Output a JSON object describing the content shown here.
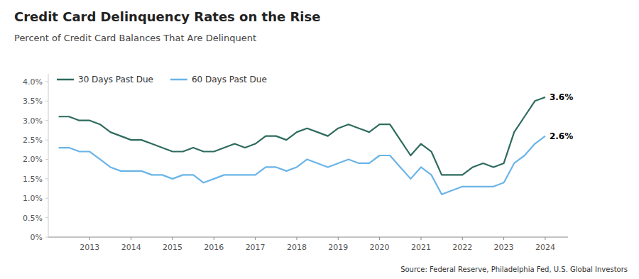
{
  "chart_data": {
    "type": "line",
    "title": "Credit Card Delinquency Rates on the Rise",
    "subtitle": "Percent of Credit Card Balances That Are Delinquent",
    "source": "Source: Federal Reserve, Philadelphia Fed, U.S. Global Investors",
    "x": [
      2012.25,
      2012.5,
      2012.75,
      2013.0,
      2013.25,
      2013.5,
      2013.75,
      2014.0,
      2014.25,
      2014.5,
      2014.75,
      2015.0,
      2015.25,
      2015.5,
      2015.75,
      2016.0,
      2016.25,
      2016.5,
      2016.75,
      2017.0,
      2017.25,
      2017.5,
      2017.75,
      2018.0,
      2018.25,
      2018.5,
      2018.75,
      2019.0,
      2019.25,
      2019.5,
      2019.75,
      2020.0,
      2020.25,
      2020.5,
      2020.75,
      2021.0,
      2021.25,
      2021.5,
      2021.75,
      2022.0,
      2022.25,
      2022.5,
      2022.75,
      2023.0,
      2023.25,
      2023.5,
      2023.75,
      2024.0
    ],
    "series": [
      {
        "name": "30 Days Past Due",
        "color": "#2e6b5e",
        "values": [
          0.031,
          0.031,
          0.03,
          0.03,
          0.029,
          0.027,
          0.026,
          0.025,
          0.025,
          0.024,
          0.023,
          0.022,
          0.022,
          0.023,
          0.022,
          0.022,
          0.023,
          0.024,
          0.023,
          0.024,
          0.026,
          0.026,
          0.025,
          0.027,
          0.028,
          0.027,
          0.026,
          0.028,
          0.029,
          0.028,
          0.027,
          0.029,
          0.029,
          0.025,
          0.021,
          0.024,
          0.022,
          0.016,
          0.016,
          0.016,
          0.018,
          0.019,
          0.018,
          0.019,
          0.027,
          0.031,
          0.035,
          0.036
        ]
      },
      {
        "name": "60 Days Past Due",
        "color": "#6ab4e8",
        "values": [
          0.023,
          0.023,
          0.022,
          0.022,
          0.02,
          0.018,
          0.017,
          0.017,
          0.017,
          0.016,
          0.016,
          0.015,
          0.016,
          0.016,
          0.014,
          0.015,
          0.016,
          0.016,
          0.016,
          0.016,
          0.018,
          0.018,
          0.017,
          0.018,
          0.02,
          0.019,
          0.018,
          0.019,
          0.02,
          0.019,
          0.019,
          0.021,
          0.021,
          0.018,
          0.015,
          0.018,
          0.016,
          0.011,
          0.012,
          0.013,
          0.013,
          0.013,
          0.013,
          0.014,
          0.019,
          0.021,
          0.024,
          0.026
        ]
      }
    ],
    "annotations": [
      {
        "text": "3.6%",
        "x": 2024.0,
        "y": 0.036
      },
      {
        "text": "2.6%",
        "x": 2024.0,
        "y": 0.026
      }
    ],
    "xlim": [
      2012.0,
      2024.55
    ],
    "xticks": [
      2013,
      2014,
      2015,
      2016,
      2017,
      2018,
      2019,
      2020,
      2021,
      2022,
      2023,
      2024
    ],
    "ylim": [
      0.0,
      0.042
    ],
    "yticks": [
      {
        "value": 0.0,
        "label": "0%"
      },
      {
        "value": 0.005,
        "label": "0.5%"
      },
      {
        "value": 0.01,
        "label": "1.0%"
      },
      {
        "value": 0.015,
        "label": "1.5%"
      },
      {
        "value": 0.02,
        "label": "2.0%"
      },
      {
        "value": 0.025,
        "label": "2.5%"
      },
      {
        "value": 0.03,
        "label": "3.0%"
      },
      {
        "value": 0.035,
        "label": "3.5%"
      },
      {
        "value": 0.04,
        "label": "4.0%"
      }
    ],
    "grid": false,
    "legend": "upper left"
  }
}
